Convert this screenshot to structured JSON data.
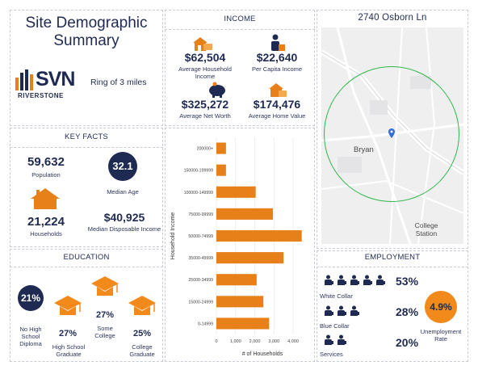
{
  "title": "Site Demographic Summary",
  "address": "2740 Osborn Ln",
  "logo": {
    "wordmark": "SVN",
    "sub": "RIVERSTONE"
  },
  "ring_label": "Ring of 3 miles",
  "income": {
    "title": "INCOME",
    "avg_household_income": {
      "value": "$62,504",
      "label": "Average Household Income"
    },
    "per_capita_income": {
      "value": "$22,640",
      "label": "Per Capita Income"
    },
    "avg_net_worth": {
      "value": "$325,272",
      "label": "Average Net Worth"
    },
    "avg_home_value": {
      "value": "$174,476",
      "label": "Average Home Value"
    }
  },
  "key_facts": {
    "title": "KEY FACTS",
    "population": {
      "value": "59,632",
      "label": "Population"
    },
    "median_age": {
      "value": "32.1",
      "label": "Median Age"
    },
    "households": {
      "value": "21,224",
      "label": "Households"
    },
    "median_disposable_income": {
      "value": "$40,925",
      "label": "Median Disposable Income"
    }
  },
  "education": {
    "title": "EDUCATION",
    "no_hs": {
      "value": "21%",
      "label": "No High School Diploma"
    },
    "hs_grad": {
      "value": "27%",
      "label": "High School Graduate"
    },
    "some_college": {
      "value": "27%",
      "label": "Some College"
    },
    "college_grad": {
      "value": "25%",
      "label": "College Graduate"
    }
  },
  "employment": {
    "title": "EMPLOYMENT",
    "white_collar": {
      "value": "53%",
      "label": "White Collar"
    },
    "blue_collar": {
      "value": "28%",
      "label": "Blue Collar"
    },
    "services": {
      "value": "20%",
      "label": "Services"
    },
    "unemployment": {
      "value": "4.9%",
      "label": "Unemployment Rate"
    }
  },
  "map": {
    "labels": {
      "city1": "Bryan",
      "city2": "College Station"
    },
    "ring_color": "#2db84a"
  },
  "colors": {
    "navy": "#1f2a52",
    "orange": "#e8801a"
  },
  "chart_data": {
    "type": "bar",
    "orientation": "horizontal",
    "categories": [
      "200000+",
      "150000-199999",
      "100000-149999",
      "75000-99999",
      "50000-74999",
      "35000-49999",
      "25000-34999",
      "15000-24999",
      "0-14999"
    ],
    "values": [
      500,
      500,
      2050,
      2950,
      4450,
      3500,
      2100,
      2450,
      2750
    ],
    "xlabel": "# of Households",
    "ylabel": "Household Income",
    "xticks": [
      "0",
      "1,000",
      "2,000",
      "3,000",
      "4,000"
    ],
    "xlim": [
      0,
      4800
    ],
    "bar_color": "#e8801a",
    "grid": true
  }
}
